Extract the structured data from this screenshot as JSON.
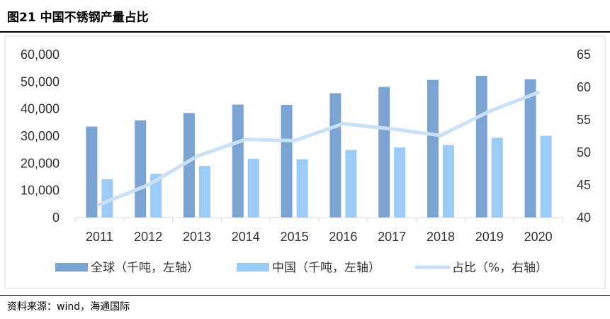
{
  "header": {
    "title": "图21 中国不锈钢产量占比"
  },
  "footer": {
    "source": "资料来源：wind，海通国际"
  },
  "colors": {
    "global_bar": "#7BA4D3",
    "china_bar": "#9CCBF5",
    "share_line": "#C9E0F7",
    "axis": "#D9D9D9"
  },
  "chart_data": {
    "type": "bar",
    "categories": [
      "2011",
      "2012",
      "2013",
      "2014",
      "2015",
      "2016",
      "2017",
      "2018",
      "2019",
      "2020"
    ],
    "series": [
      {
        "name": "全球（千吨，左轴）",
        "kind": "bar",
        "axis": "left",
        "values": [
          33500,
          35800,
          38500,
          41600,
          41500,
          45800,
          48100,
          50700,
          52200,
          50900
        ]
      },
      {
        "name": "中国（千吨，左轴）",
        "kind": "bar",
        "axis": "left",
        "values": [
          14100,
          16100,
          19000,
          21700,
          21500,
          24900,
          25800,
          26700,
          29400,
          30100
        ]
      },
      {
        "name": "占比（%，右轴）",
        "kind": "line",
        "axis": "right",
        "values": [
          42.0,
          45.0,
          49.4,
          52.0,
          51.8,
          54.4,
          53.6,
          52.6,
          56.3,
          59.2
        ]
      }
    ],
    "left_axis": {
      "ticks": [
        "0",
        "10,000",
        "20,000",
        "30,000",
        "40,000",
        "50,000",
        "60,000"
      ],
      "ylim": [
        0,
        60000
      ]
    },
    "right_axis": {
      "ticks": [
        "40",
        "45",
        "50",
        "55",
        "60",
        "65"
      ],
      "ylim": [
        40,
        65
      ]
    },
    "grid": false,
    "legend_position": "bottom"
  }
}
